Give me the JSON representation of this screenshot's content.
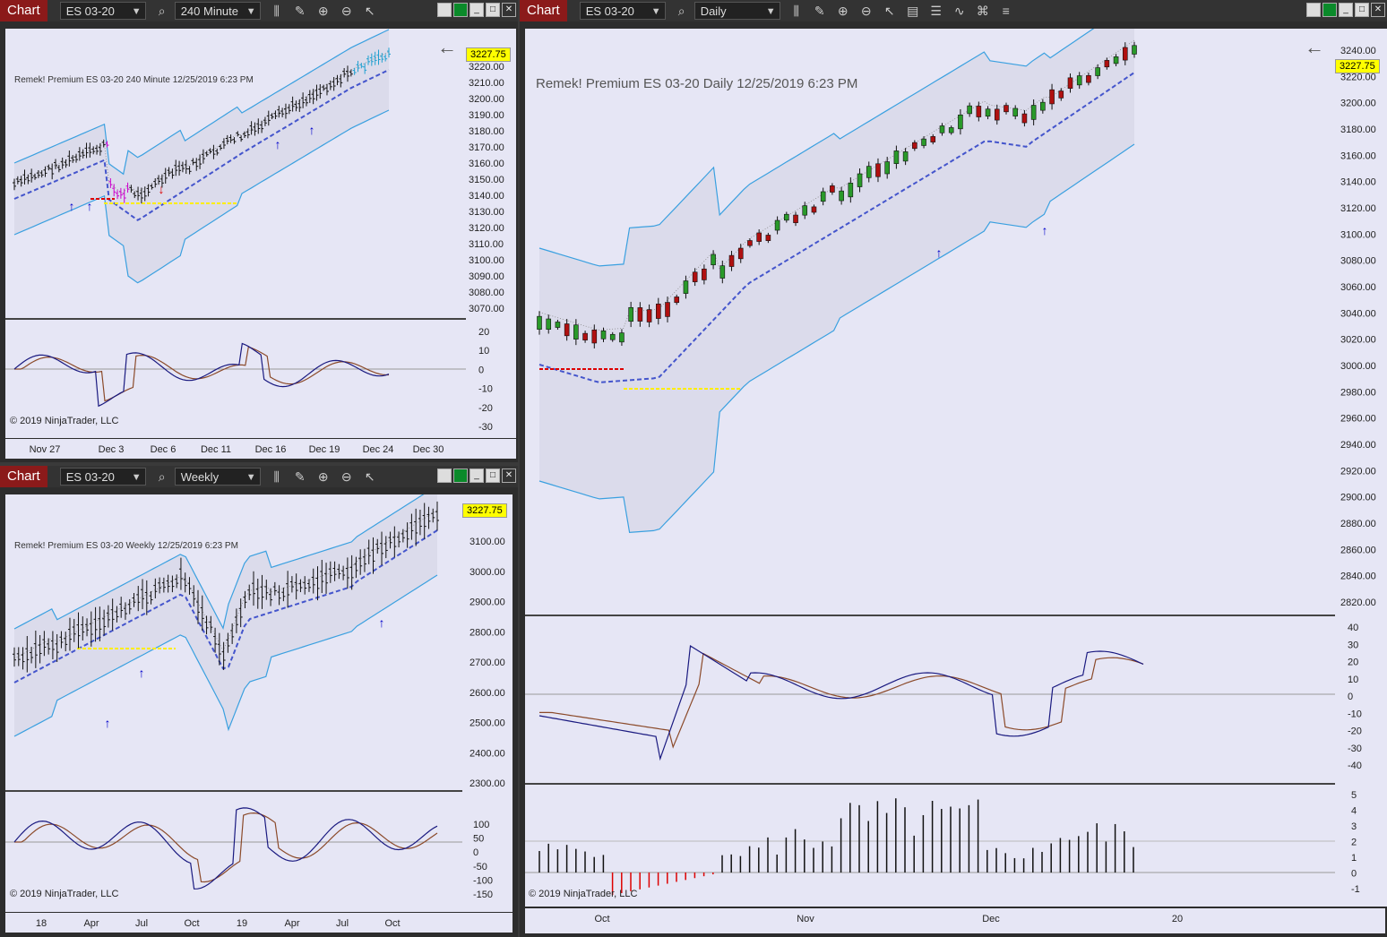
{
  "windows": [
    {
      "id": "w240",
      "chart_tab": "Chart",
      "instrument": "ES 03-20",
      "interval": "240 Minute",
      "title_text": "Remek!  Premium  ES 03-20  240 Minute  12/25/2019 6:23 PM",
      "price_tag": "3227.75",
      "copyright": "© 2019 NinjaTrader, LLC",
      "price_ticks": [
        "3220.00",
        "3210.00",
        "3200.00",
        "3190.00",
        "3180.00",
        "3170.00",
        "3160.00",
        "3150.00",
        "3140.00",
        "3130.00",
        "3120.00",
        "3110.00",
        "3100.00",
        "3090.00",
        "3080.00",
        "3070.00"
      ],
      "osc_ticks": [
        "20",
        "10",
        "0",
        "-10",
        "-20",
        "-30"
      ],
      "date_ticks": [
        "Nov 27",
        "Dec 3",
        "Dec 6",
        "Dec 11",
        "Dec 16",
        "Dec 19",
        "Dec 24",
        "Dec 30"
      ]
    },
    {
      "id": "wweekly",
      "chart_tab": "Chart",
      "instrument": "ES 03-20",
      "interval": "Weekly",
      "title_text": "Remek!  Premium  ES 03-20  Weekly  12/25/2019 6:23 PM",
      "price_tag": "3227.75",
      "copyright": "© 2019 NinjaTrader, LLC",
      "price_ticks": [
        "3100.00",
        "3000.00",
        "2900.00",
        "2800.00",
        "2700.00",
        "2600.00",
        "2500.00",
        "2400.00",
        "2300.00"
      ],
      "osc_ticks": [
        "100",
        "50",
        "0",
        "-50",
        "-100",
        "-150"
      ],
      "date_ticks": [
        "18",
        "Apr",
        "Jul",
        "Oct",
        "19",
        "Apr",
        "Jul",
        "Oct"
      ]
    },
    {
      "id": "wdaily",
      "chart_tab": "Chart",
      "instrument": "ES 03-20",
      "interval": "Daily",
      "title_text": "Remek!  Premium  ES 03-20  Daily  12/25/2019 6:23 PM",
      "price_tag": "3227.75",
      "copyright": "© 2019 NinjaTrader, LLC",
      "price_ticks": [
        "3240.00",
        "3220.00",
        "3200.00",
        "3180.00",
        "3160.00",
        "3140.00",
        "3120.00",
        "3100.00",
        "3080.00",
        "3060.00",
        "3040.00",
        "3020.00",
        "3000.00",
        "2980.00",
        "2960.00",
        "2940.00",
        "2920.00",
        "2900.00",
        "2880.00",
        "2860.00",
        "2840.00",
        "2820.00"
      ],
      "osc_ticks": [
        "40",
        "30",
        "20",
        "10",
        "0",
        "-10",
        "-20",
        "-30",
        "-40"
      ],
      "hist_ticks": [
        "5",
        "4",
        "3",
        "2",
        "1",
        "0",
        "-1"
      ],
      "date_ticks": [
        "Oct",
        "Nov",
        "Dec",
        "20"
      ]
    }
  ],
  "colors": {
    "chart_tab": "#8b1a1a",
    "plot_bg": "#e6e6f5",
    "band": "#3aa0e0",
    "mid": "#4455cc",
    "signal_red": "#dd0000",
    "signal_yellow": "#ffff00",
    "arrow_blue": "#0000cc",
    "price_tag": "#ffff00"
  }
}
